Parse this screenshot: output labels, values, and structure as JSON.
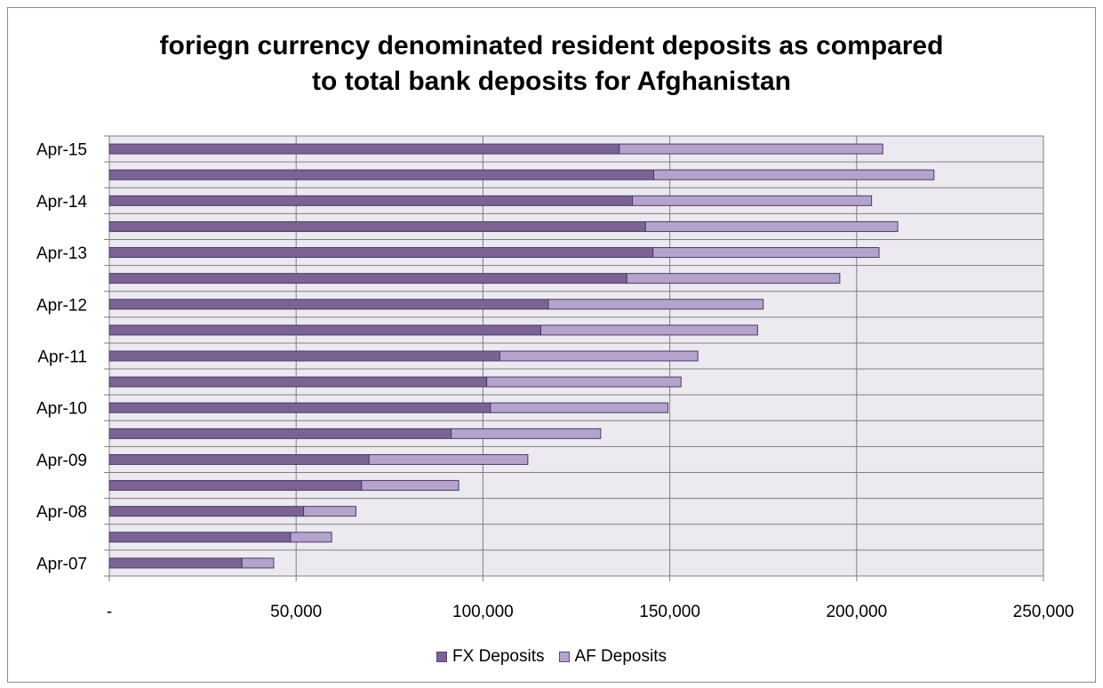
{
  "chart_data": {
    "type": "bar",
    "orientation": "horizontal",
    "stacked": true,
    "title_lines": [
      "foriegn currency denominated resident deposits as compared",
      "to total bank deposits for Afghanistan"
    ],
    "categories": [
      "Apr-15",
      "",
      "Apr-14",
      "",
      "Apr-13",
      "",
      "Apr-12",
      "",
      "Apr-11",
      "",
      "Apr-10",
      "",
      "Apr-09",
      "",
      "Apr-08",
      "",
      "Apr-07"
    ],
    "series": [
      {
        "name": "FX Deposits",
        "color": "#7b6394",
        "values": [
          136500,
          145700,
          140000,
          143500,
          145500,
          138500,
          117500,
          115500,
          104500,
          101000,
          102000,
          91500,
          69500,
          67500,
          52000,
          48500,
          35500
        ]
      },
      {
        "name": "AF Deposits",
        "color": "#b4a4cc",
        "values": [
          70500,
          75000,
          64000,
          67500,
          60500,
          57000,
          57500,
          58000,
          53000,
          52000,
          47500,
          40000,
          42500,
          26000,
          14000,
          11000,
          8500
        ]
      }
    ],
    "x_ticks": [
      0,
      50000,
      100000,
      150000,
      200000,
      250000
    ],
    "x_tick_labels": [
      "-",
      "50,000",
      "100,000",
      "150,000",
      "200,000",
      "250,000"
    ],
    "xlim": [
      0,
      250000
    ],
    "grid": true,
    "legend_position": "bottom",
    "plot_background": "#ece9f0",
    "grid_color": "#7f7f7f"
  }
}
